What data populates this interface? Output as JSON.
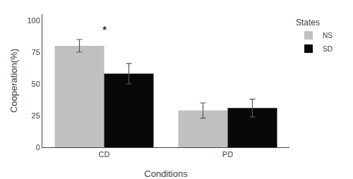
{
  "chart_data": {
    "type": "bar",
    "categories": [
      "CD",
      "PD"
    ],
    "series": [
      {
        "name": "NS",
        "color": "#c0c0c0",
        "values": [
          80,
          29
        ],
        "errors": [
          5.0,
          6.0
        ]
      },
      {
        "name": "SD",
        "color": "#080808",
        "values": [
          58,
          31
        ],
        "errors": [
          8.0,
          7.0
        ]
      }
    ],
    "xlabel": "Conditions",
    "ylabel": "Cooperation(%)",
    "ylim": [
      0,
      105
    ],
    "yticks": [
      0,
      25,
      50,
      75,
      100
    ],
    "grid": false,
    "legend": "right",
    "legend_title": "States",
    "annotations": [
      {
        "text": "*",
        "x": 0
      }
    ]
  }
}
